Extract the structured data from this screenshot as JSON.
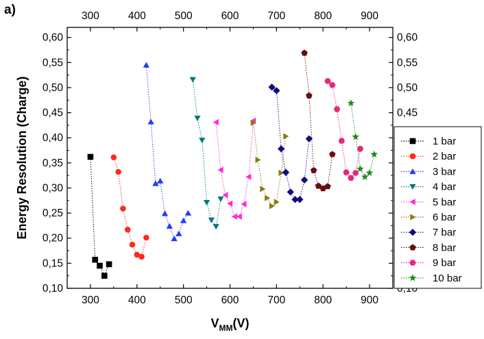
{
  "panel_label": "a)",
  "chart_data": {
    "type": "scatter",
    "title": "",
    "xlabel": "V",
    "xlabel_subscript": "MM",
    "xlabel_unit": "(V)",
    "ylabel": "Energy Resolution (Charge)",
    "xlim": [
      250,
      950
    ],
    "ylim": [
      0.1,
      0.62
    ],
    "x_ticks": [
      300,
      400,
      500,
      600,
      700,
      800,
      900
    ],
    "x_tick_labels": [
      "300",
      "400",
      "500",
      "600",
      "700",
      "800",
      "900"
    ],
    "y_ticks": [
      0.1,
      0.15,
      0.2,
      0.25,
      0.3,
      0.35,
      0.4,
      0.45,
      0.5,
      0.55,
      0.6
    ],
    "y_tick_labels": [
      "0,10",
      "0,15",
      "0,20",
      "0,25",
      "0,30",
      "0,35",
      "0,40",
      "0,45",
      "0,50",
      "0,55",
      "0,60"
    ],
    "secondary_axes": "mirrored top and right",
    "grid": false,
    "legend_position": "right",
    "series": [
      {
        "name": "1 bar",
        "marker": "square",
        "color": "#000000",
        "x": [
          300,
          310,
          320,
          330,
          340
        ],
        "y": [
          0.362,
          0.157,
          0.145,
          0.125,
          0.148
        ]
      },
      {
        "name": "2 bar",
        "marker": "circle",
        "color": "#ff2a1a",
        "x": [
          350,
          360,
          370,
          380,
          390,
          400,
          410,
          420
        ],
        "y": [
          0.361,
          0.332,
          0.259,
          0.217,
          0.187,
          0.167,
          0.163,
          0.201
        ]
      },
      {
        "name": "3 bar",
        "marker": "triangle-up",
        "color": "#1a3cff",
        "x": [
          420,
          430,
          440,
          450,
          460,
          470,
          480,
          490,
          500,
          510
        ],
        "y": [
          0.545,
          0.432,
          0.309,
          0.314,
          0.249,
          0.224,
          0.199,
          0.209,
          0.235,
          0.25
        ]
      },
      {
        "name": "4 bar",
        "marker": "triangle-down",
        "color": "#007a7a",
        "x": [
          520,
          530,
          540,
          550,
          560,
          570,
          580
        ],
        "y": [
          0.516,
          0.439,
          0.395,
          0.271,
          0.236,
          0.223,
          0.278
        ]
      },
      {
        "name": "5 bar",
        "marker": "triangle-left",
        "color": "#ff2adf",
        "x": [
          570,
          580,
          590,
          600,
          610,
          620,
          630,
          640,
          650
        ],
        "y": [
          0.431,
          0.336,
          0.286,
          0.269,
          0.243,
          0.243,
          0.268,
          0.322,
          0.434
        ]
      },
      {
        "name": "6 bar",
        "marker": "triangle-right",
        "color": "#8a7a10",
        "x": [
          650,
          660,
          670,
          680,
          690,
          700,
          710,
          720
        ],
        "y": [
          0.43,
          0.356,
          0.298,
          0.28,
          0.264,
          0.272,
          0.33,
          0.403
        ]
      },
      {
        "name": "7 bar",
        "marker": "diamond",
        "color": "#0d0d80",
        "x": [
          690,
          700,
          710,
          720,
          730,
          740,
          750,
          760,
          770
        ],
        "y": [
          0.501,
          0.494,
          0.378,
          0.331,
          0.292,
          0.277,
          0.277,
          0.316,
          0.398
        ]
      },
      {
        "name": "8 bar",
        "marker": "pentagon",
        "color": "#6b0d0d",
        "x": [
          760,
          770,
          780,
          790,
          800,
          810,
          820
        ],
        "y": [
          0.569,
          0.484,
          0.335,
          0.304,
          0.299,
          0.303,
          0.367
        ]
      },
      {
        "name": "9 bar",
        "marker": "hexagon",
        "color": "#e6277f",
        "x": [
          810,
          820,
          830,
          840,
          850,
          860,
          870,
          880
        ],
        "y": [
          0.513,
          0.505,
          0.457,
          0.394,
          0.331,
          0.32,
          0.33,
          0.378
        ]
      },
      {
        "name": "10 bar",
        "marker": "star",
        "color": "#1c8a1c",
        "x": [
          860,
          870,
          880,
          890,
          900,
          910
        ],
        "y": [
          0.469,
          0.402,
          0.338,
          0.322,
          0.33,
          0.367
        ]
      }
    ]
  }
}
